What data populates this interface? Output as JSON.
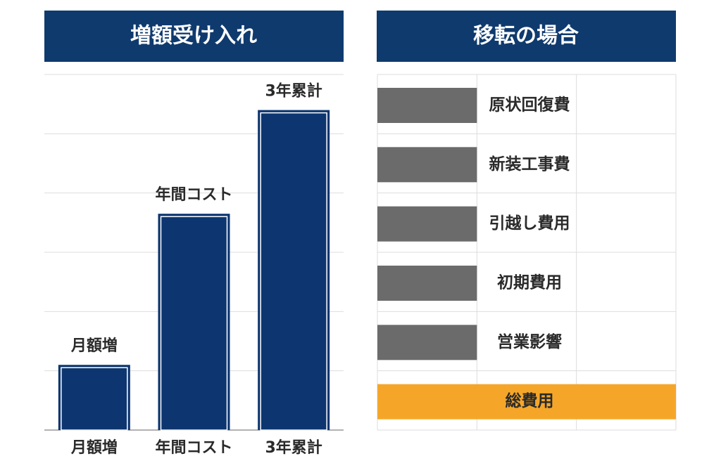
{
  "chart_data": [
    {
      "type": "bar",
      "title": "増額受け入れ",
      "categories": [
        "月額増",
        "年間コスト",
        "3年累計"
      ],
      "values": [
        1.1,
        3.65,
        5.4
      ],
      "color": "#0d3670",
      "ylim": [
        0,
        6
      ],
      "yticks": [
        0,
        1,
        2,
        3,
        4,
        5,
        6
      ],
      "grid": true
    },
    {
      "type": "hbar",
      "title": "移転の場合",
      "categories": [
        "原状回復費",
        "新装工事費",
        "引越し費用",
        "初期費用",
        "営業影響",
        "総費用"
      ],
      "values": [
        1,
        1,
        1,
        1,
        1,
        3
      ],
      "colors": [
        "#6b6b6b",
        "#6b6b6b",
        "#6b6b6b",
        "#6b6b6b",
        "#6b6b6b",
        "#f5a629"
      ],
      "xlim": [
        0,
        3
      ],
      "xticks": [
        0,
        1,
        2,
        3
      ],
      "grid": true
    }
  ]
}
